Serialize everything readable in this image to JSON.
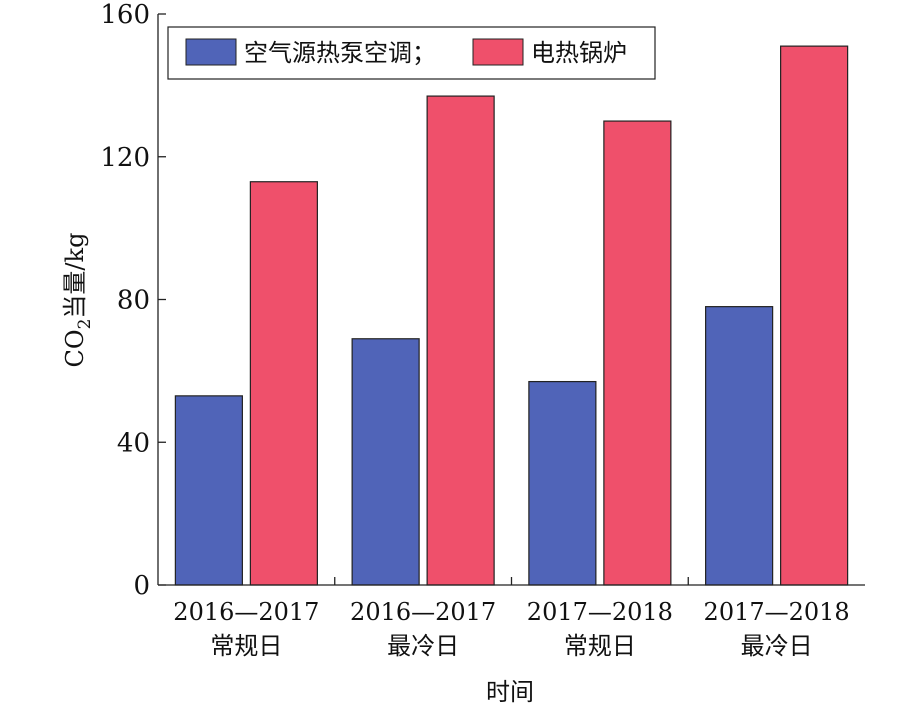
{
  "chart_data": {
    "type": "bar",
    "title": "",
    "xlabel": "时间",
    "ylabel_main": "CO",
    "ylabel_sub": "2",
    "ylabel_tail": "当量/kg",
    "categories": [
      [
        "2016—2017",
        "常规日"
      ],
      [
        "2016—2017",
        "最冷日"
      ],
      [
        "2017—2018",
        "常规日"
      ],
      [
        "2017—2018",
        "最冷日"
      ]
    ],
    "series": [
      {
        "name": "空气源热泵空调；",
        "color": "#5064b8",
        "values": [
          53,
          69,
          57,
          78
        ]
      },
      {
        "name": "电热锅炉",
        "color": "#ef506b",
        "values": [
          113,
          137,
          130,
          151
        ]
      }
    ],
    "ylim": [
      0,
      160
    ],
    "yticks": [
      "0",
      "40",
      "80",
      "120",
      "160"
    ],
    "grid": false,
    "legend_position": "top-left"
  }
}
